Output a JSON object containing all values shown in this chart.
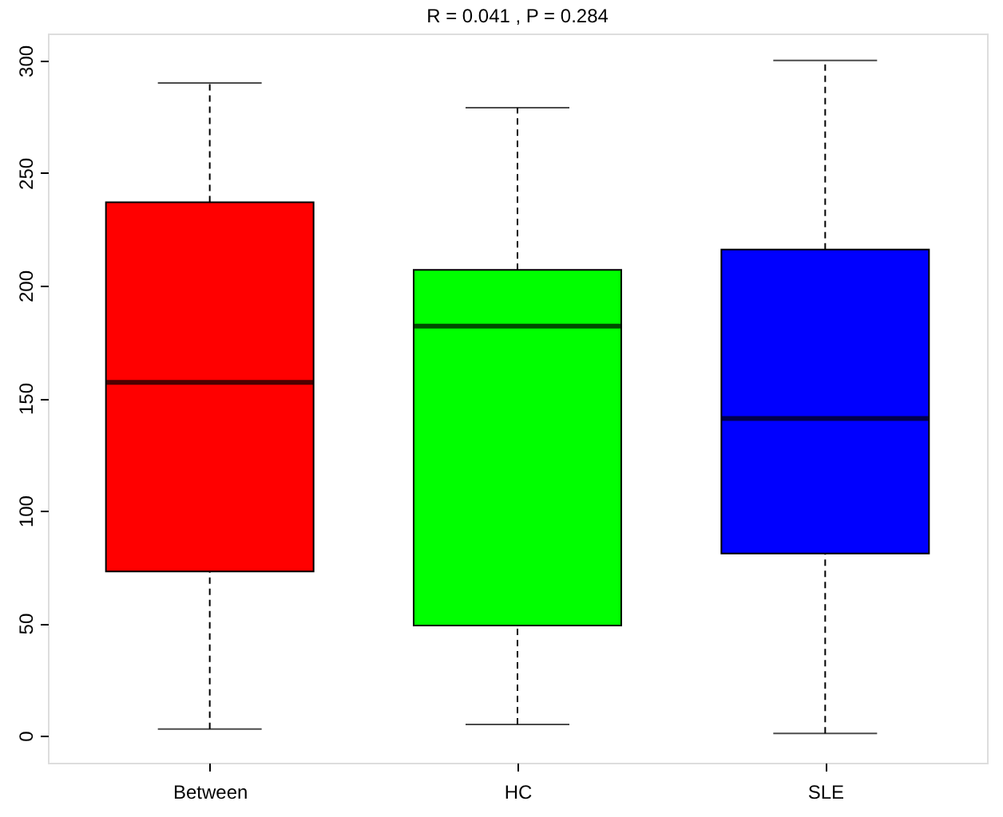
{
  "chart_data": {
    "type": "box",
    "title": "R = 0.041 ,  P = 0.284",
    "categories": [
      "Between",
      "HC",
      "SLE"
    ],
    "colors": [
      "#ff0000",
      "#00ff00",
      "#0000ff"
    ],
    "boxes": [
      {
        "low": 3,
        "q1": 73,
        "median": 157,
        "q3": 237,
        "high": 290
      },
      {
        "low": 5,
        "q1": 49,
        "median": 182,
        "q3": 207,
        "high": 279
      },
      {
        "low": 1,
        "q1": 81,
        "median": 141,
        "q3": 216,
        "high": 300
      }
    ],
    "ylim": [
      -12,
      312
    ],
    "yticks": [
      0,
      50,
      100,
      150,
      200,
      250,
      300
    ]
  }
}
